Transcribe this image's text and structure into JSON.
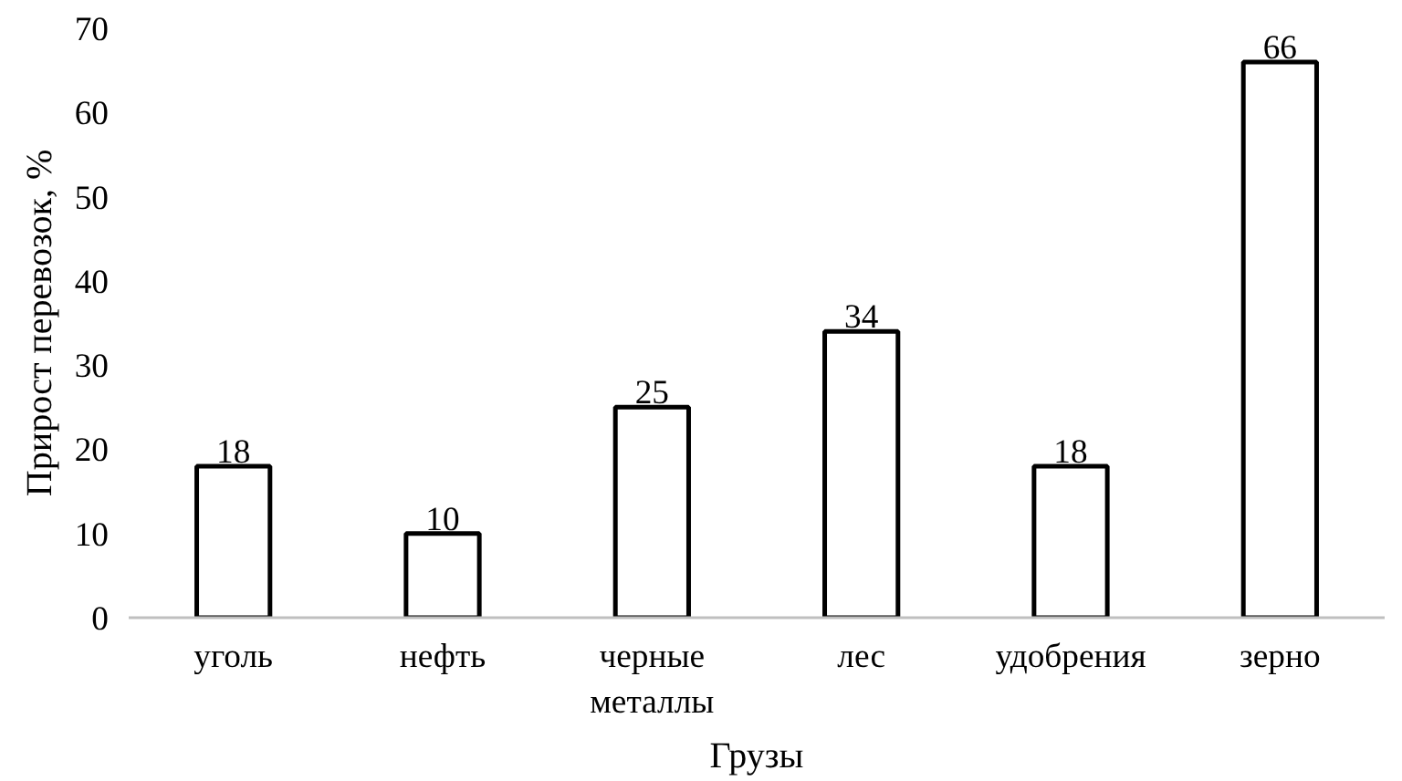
{
  "chart_data": {
    "type": "bar",
    "xlabel": "Грузы",
    "ylabel": "Прирост перевозок, %",
    "categories": [
      "уголь",
      "нефть",
      "черные металлы",
      "лес",
      "удобрения",
      "зерно"
    ],
    "values": [
      18,
      10,
      25,
      34,
      18,
      66
    ],
    "color": "#ffffff",
    "ylim": [
      0,
      70
    ],
    "yticks": [
      0,
      10,
      20,
      30,
      40,
      50,
      60,
      70
    ],
    "grid": false,
    "data_labels": true
  }
}
